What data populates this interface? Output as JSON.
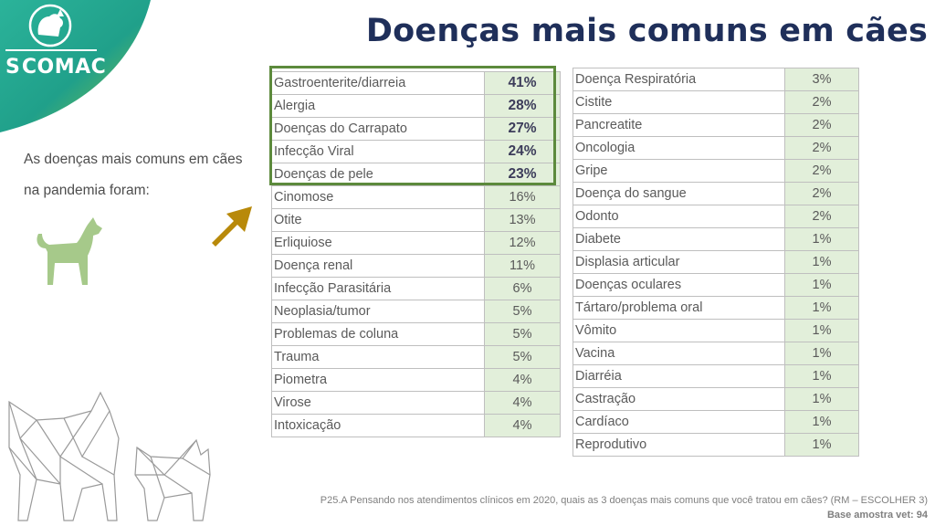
{
  "brand": {
    "name": "COMAC",
    "mark": "S",
    "logo_icon": "dog-cat-logo-icon"
  },
  "title": "Doenças mais comuns em cães",
  "intro": {
    "line1": "As doenças mais comuns em cães",
    "line2": "na pandemia foram:"
  },
  "icons": {
    "dog": "dog-icon",
    "arrow": "arrow-up-right-icon",
    "polygon_pets": "polygon-dog-cat-illustration"
  },
  "colors": {
    "accent_green": "#5c8a3c",
    "value_bg": "#e2efda",
    "title": "#1f2f5a",
    "arrow": "#b8890a"
  },
  "table_left": [
    {
      "name": "Gastroenterite/diarreia",
      "value": "41%",
      "top": true
    },
    {
      "name": "Alergia",
      "value": "28%",
      "top": true
    },
    {
      "name": "Doenças do Carrapato",
      "value": "27%",
      "top": true
    },
    {
      "name": "Infecção Viral",
      "value": "24%",
      "top": true
    },
    {
      "name": "Doenças de pele",
      "value": "23%",
      "top": true
    },
    {
      "name": "Cinomose",
      "value": "16%"
    },
    {
      "name": "Otite",
      "value": "13%"
    },
    {
      "name": "Erliquiose",
      "value": "12%"
    },
    {
      "name": "Doença renal",
      "value": "11%"
    },
    {
      "name": "Infecção Parasitária",
      "value": "6%"
    },
    {
      "name": "Neoplasia/tumor",
      "value": "5%"
    },
    {
      "name": "Problemas de coluna",
      "value": "5%"
    },
    {
      "name": "Trauma",
      "value": "5%"
    },
    {
      "name": "Piometra",
      "value": "4%"
    },
    {
      "name": "Virose",
      "value": "4%"
    },
    {
      "name": "Intoxicação",
      "value": "4%"
    }
  ],
  "table_right": [
    {
      "name": "Doença Respiratória",
      "value": "3%"
    },
    {
      "name": "Cistite",
      "value": "2%"
    },
    {
      "name": "Pancreatite",
      "value": "2%"
    },
    {
      "name": "Oncologia",
      "value": "2%"
    },
    {
      "name": "Gripe",
      "value": "2%"
    },
    {
      "name": "Doença do sangue",
      "value": "2%"
    },
    {
      "name": "Odonto",
      "value": "2%"
    },
    {
      "name": "Diabete",
      "value": "1%"
    },
    {
      "name": "Displasia articular",
      "value": "1%"
    },
    {
      "name": "Doenças oculares",
      "value": "1%"
    },
    {
      "name": "Tártaro/problema oral",
      "value": "1%"
    },
    {
      "name": "Vômito",
      "value": "1%"
    },
    {
      "name": "Vacina",
      "value": "1%"
    },
    {
      "name": "Diarréia",
      "value": "1%"
    },
    {
      "name": "Castração",
      "value": "1%"
    },
    {
      "name": "Cardíaco",
      "value": "1%"
    },
    {
      "name": "Reprodutivo",
      "value": "1%"
    }
  ],
  "footer": {
    "question": "P25.A Pensando nos atendimentos clínicos em 2020, quais as 3 doenças mais comuns que você tratou em cães? (RM – ESCOLHER 3)",
    "base": "Base amostra vet: 94"
  }
}
